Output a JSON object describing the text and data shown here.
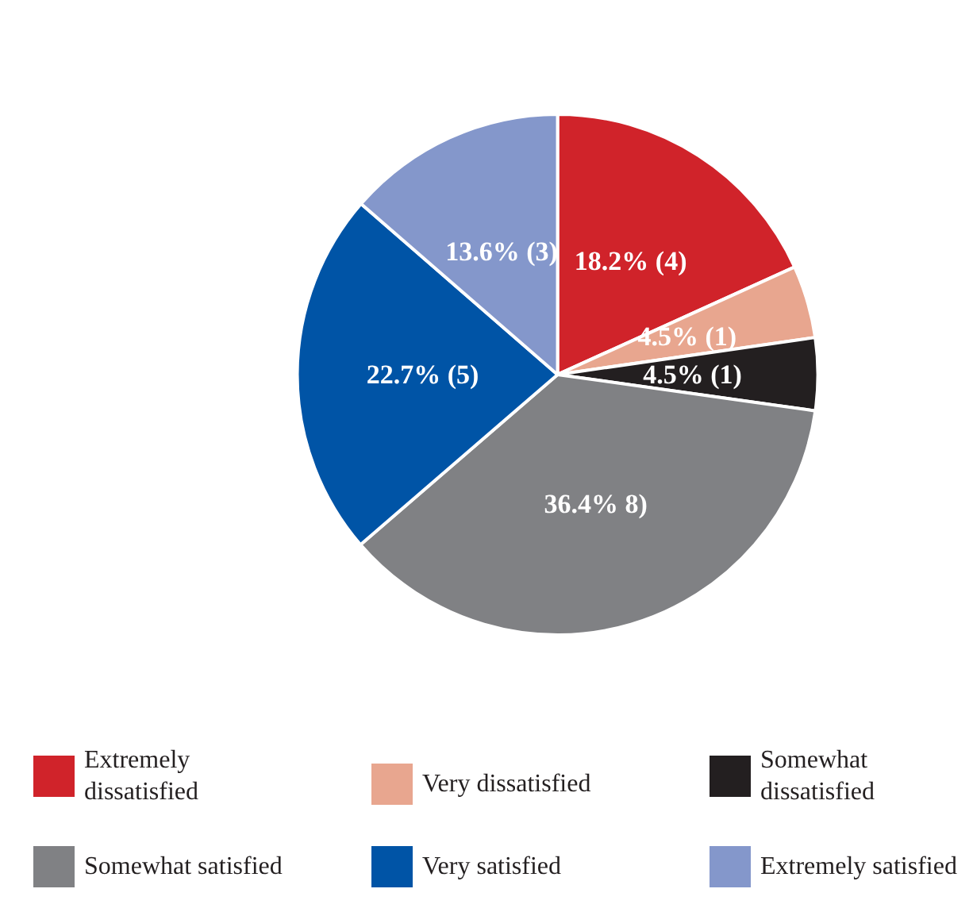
{
  "chart_data": {
    "type": "pie",
    "categories": [
      "Extremely dissatisfied",
      "Very dissatisfied",
      "Somewhat dissatisfied",
      "Somewhat satisfied",
      "Very satisfied",
      "Extremely satisfied"
    ],
    "values": [
      18.2,
      4.5,
      4.5,
      36.4,
      22.7,
      13.6
    ],
    "value_labels": [
      "18.2% (4)",
      "4.5% (1)",
      "4.5% (1)",
      "36.4% 8)",
      "22.7% (5)",
      "13.6% (3)"
    ],
    "colors": [
      "#d0232a",
      "#e8a68f",
      "#231f20",
      "#808184",
      "#0054a6",
      "#8497cb"
    ],
    "legend": "bottom"
  }
}
